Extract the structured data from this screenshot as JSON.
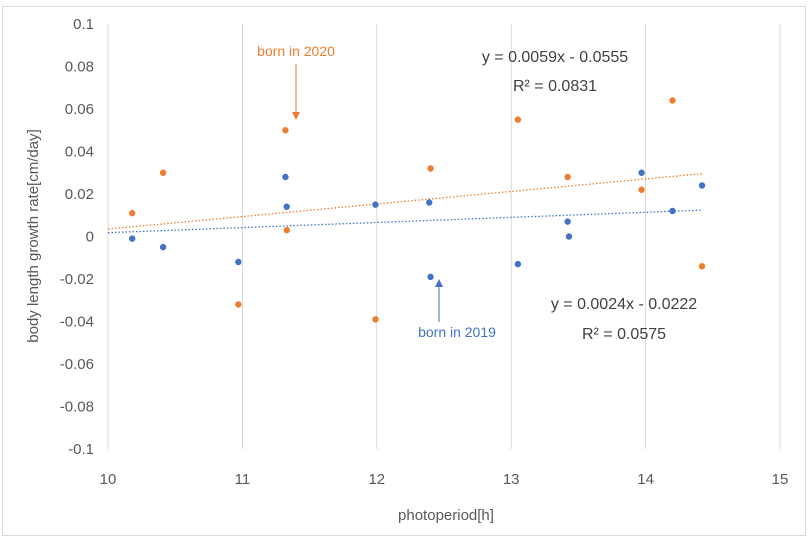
{
  "chart_data": {
    "type": "scatter",
    "title": "",
    "xlabel": "photoperiod[h]",
    "ylabel": "body length growth rate[cm/day]",
    "xlim": [
      10,
      15
    ],
    "ylim": [
      -0.1,
      0.1
    ],
    "x_ticks": [
      10,
      11,
      12,
      13,
      14,
      15
    ],
    "y_ticks": [
      -0.1,
      -0.08,
      -0.06,
      -0.04,
      -0.02,
      0,
      0.02,
      0.04,
      0.06,
      0.08,
      0.1
    ],
    "x_tick_labels": [
      "10",
      "11",
      "12",
      "13",
      "14",
      "15"
    ],
    "y_tick_labels": [
      "-0.1",
      "-0.08",
      "-0.06",
      "-0.04",
      "-0.02",
      "0",
      "0.02",
      "0.04",
      "0.06",
      "0.08",
      "0.1"
    ],
    "grid": "vertical",
    "series": [
      {
        "name": "born in 2019",
        "color": "#4472C4",
        "x": [
          10.18,
          10.41,
          10.97,
          11.32,
          11.33,
          11.99,
          12.39,
          12.4,
          13.05,
          13.42,
          13.43,
          13.97,
          14.2,
          14.42
        ],
        "y": [
          -0.001,
          -0.005,
          -0.012,
          0.028,
          0.014,
          0.015,
          0.016,
          -0.019,
          -0.013,
          0.007,
          0.0,
          0.03,
          0.012,
          0.024
        ],
        "trendline": {
          "slope": 0.0024,
          "intercept": -0.0222,
          "equation": "y = 0.0024x - 0.0222",
          "r2": "R² = 0.0575"
        },
        "annotation": "born in 2019"
      },
      {
        "name": "born in 2020",
        "color": "#ED7D31",
        "x": [
          10.18,
          10.41,
          10.97,
          11.32,
          11.33,
          11.99,
          12.4,
          13.05,
          13.42,
          13.97,
          14.2,
          14.42
        ],
        "y": [
          0.011,
          0.03,
          -0.032,
          0.05,
          0.003,
          -0.039,
          0.032,
          0.055,
          0.028,
          0.022,
          0.064,
          -0.014
        ],
        "trendline": {
          "slope": 0.0059,
          "intercept": -0.0555,
          "equation": "y = 0.0059x - 0.0555",
          "r2": "R² = 0.0831"
        },
        "annotation": "born in 2020"
      }
    ]
  }
}
